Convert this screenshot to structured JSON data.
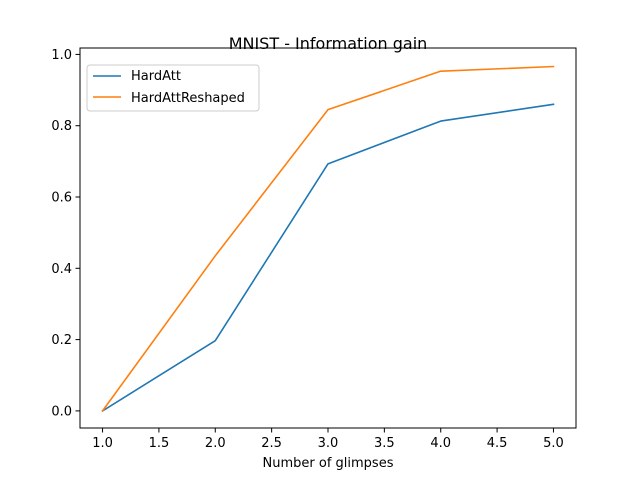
{
  "chart_data": {
    "type": "line",
    "title": "MNIST - Information gain",
    "xlabel": "Number of glimpses",
    "ylabel": "",
    "x": [
      1.0,
      2.0,
      3.0,
      4.0,
      5.0
    ],
    "xlim": [
      0.8,
      5.2
    ],
    "ylim": [
      -0.048,
      1.018
    ],
    "xticks": [
      1.0,
      1.5,
      2.0,
      2.5,
      3.0,
      3.5,
      4.0,
      4.5,
      5.0
    ],
    "xtick_labels": [
      "1.0",
      "1.5",
      "2.0",
      "2.5",
      "3.0",
      "3.5",
      "4.0",
      "4.5",
      "5.0"
    ],
    "yticks": [
      0.0,
      0.2,
      0.4,
      0.6,
      0.8,
      1.0
    ],
    "ytick_labels": [
      "0.0",
      "0.2",
      "0.4",
      "0.6",
      "0.8",
      "1.0"
    ],
    "grid": false,
    "legend_position": "upper-left",
    "series": [
      {
        "name": "HardAtt",
        "color": "#1f77b4",
        "values": [
          0.0,
          0.197,
          0.693,
          0.813,
          0.86
        ]
      },
      {
        "name": "HardAttReshaped",
        "color": "#ff7f0e",
        "values": [
          0.0,
          0.435,
          0.845,
          0.953,
          0.966
        ]
      }
    ]
  }
}
